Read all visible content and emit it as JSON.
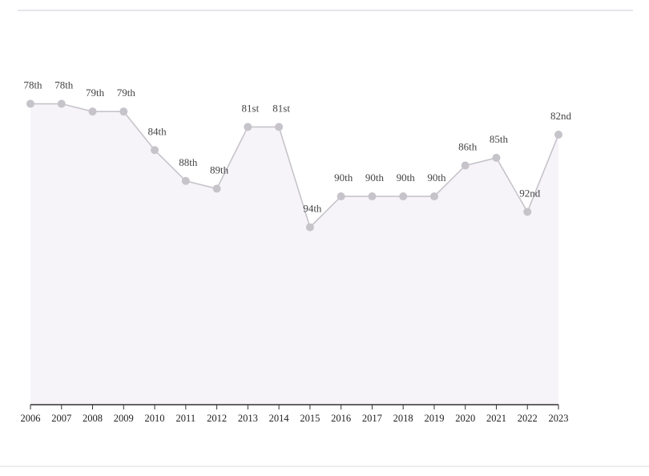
{
  "chart_data": {
    "type": "line",
    "categories": [
      "2006",
      "2007",
      "2008",
      "2009",
      "2010",
      "2011",
      "2012",
      "2013",
      "2014",
      "2015",
      "2016",
      "2017",
      "2018",
      "2019",
      "2020",
      "2021",
      "2022",
      "2023"
    ],
    "values": [
      78,
      78,
      79,
      79,
      84,
      88,
      89,
      81,
      81,
      94,
      90,
      90,
      90,
      90,
      86,
      85,
      92,
      82
    ],
    "value_labels": [
      "78th",
      "78th",
      "79th",
      "79th",
      "84th",
      "88th",
      "89th",
      "81st",
      "81st",
      "94th",
      "90th",
      "90th",
      "90th",
      "90th",
      "86th",
      "85th",
      "92nd",
      "82nd"
    ],
    "ylim": [
      117,
      66
    ],
    "color": "#c6c4ca",
    "area_color": "#f6f4f9"
  }
}
